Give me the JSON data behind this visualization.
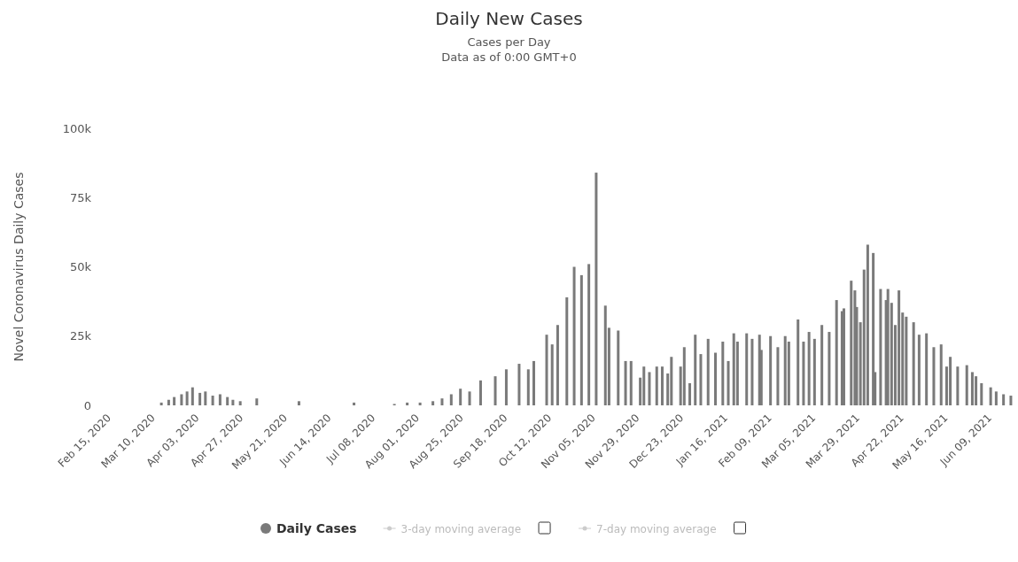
{
  "chart_data": {
    "type": "bar",
    "title": "Daily New Cases",
    "subtitle": "Cases per Day\nData as of 0:00 GMT+0",
    "ylabel": "Novel Coronavirus Daily Cases",
    "x": [
      "2020-03-16",
      "2020-03-20",
      "2020-03-23",
      "2020-03-27",
      "2020-03-30",
      "2020-04-02",
      "2020-04-06",
      "2020-04-09",
      "2020-04-13",
      "2020-04-17",
      "2020-04-21",
      "2020-04-24",
      "2020-04-28",
      "2020-05-07",
      "2020-05-30",
      "2020-06-29",
      "2020-07-21",
      "2020-07-28",
      "2020-08-04",
      "2020-08-11",
      "2020-08-16",
      "2020-08-21",
      "2020-08-26",
      "2020-08-31",
      "2020-09-06",
      "2020-09-14",
      "2020-09-20",
      "2020-09-27",
      "2020-10-02",
      "2020-10-05",
      "2020-10-12",
      "2020-10-15",
      "2020-10-18",
      "2020-10-23",
      "2020-10-27",
      "2020-10-31",
      "2020-11-04",
      "2020-11-08",
      "2020-11-13",
      "2020-11-15",
      "2020-11-20",
      "2020-11-24",
      "2020-11-27",
      "2020-12-02",
      "2020-12-04",
      "2020-12-07",
      "2020-12-11",
      "2020-12-14",
      "2020-12-17",
      "2020-12-19",
      "2020-12-24",
      "2020-12-26",
      "2020-12-29",
      "2021-01-01",
      "2021-01-04",
      "2021-01-08",
      "2021-01-12",
      "2021-01-16",
      "2021-01-19",
      "2021-01-22",
      "2021-01-24",
      "2021-01-29",
      "2021-02-01",
      "2021-02-05",
      "2021-02-06",
      "2021-02-11",
      "2021-02-15",
      "2021-02-19",
      "2021-02-21",
      "2021-02-26",
      "2021-03-01",
      "2021-03-04",
      "2021-03-07",
      "2021-03-11",
      "2021-03-15",
      "2021-03-19",
      "2021-03-22",
      "2021-03-23",
      "2021-03-27",
      "2021-03-29",
      "2021-03-30",
      "2021-04-01",
      "2021-04-03",
      "2021-04-05",
      "2021-04-08",
      "2021-04-09",
      "2021-04-12",
      "2021-04-15",
      "2021-04-16",
      "2021-04-18",
      "2021-04-20",
      "2021-04-22",
      "2021-04-24",
      "2021-04-26",
      "2021-04-30",
      "2021-05-03",
      "2021-05-07",
      "2021-05-11",
      "2021-05-15",
      "2021-05-18",
      "2021-05-20",
      "2021-05-24",
      "2021-05-29",
      "2021-06-01",
      "2021-06-03",
      "2021-06-06",
      "2021-06-11",
      "2021-06-14",
      "2021-06-18",
      "2021-06-22"
    ],
    "series": [
      {
        "name": "Daily Cases",
        "color": "#7a7a7a",
        "values": [
          1000,
          2000,
          3000,
          4000,
          5000,
          6500,
          4500,
          5000,
          3500,
          4000,
          3000,
          2000,
          1500,
          2500,
          1500,
          1000,
          500,
          1000,
          1000,
          1500,
          2500,
          4000,
          6000,
          5000,
          9000,
          10500,
          13000,
          15000,
          13000,
          16000,
          25500,
          22000,
          29000,
          39000,
          50000,
          47000,
          51000,
          84000,
          36000,
          28000,
          27000,
          16000,
          16000,
          10000,
          14000,
          12000,
          14000,
          14000,
          11500,
          17500,
          14000,
          21000,
          8000,
          25500,
          18500,
          24000,
          19000,
          23000,
          16000,
          26000,
          23000,
          26000,
          24000,
          25500,
          20000,
          25000,
          21000,
          25000,
          23000,
          31000,
          23000,
          26500,
          24000,
          29000,
          26500,
          38000,
          34000,
          35000,
          45000,
          41500,
          35500,
          30000,
          49000,
          58000,
          55000,
          12000,
          42000,
          38000,
          42000,
          37000,
          29000,
          41500,
          33500,
          32000,
          30000,
          25500,
          26000,
          21000,
          22000,
          14000,
          17500,
          14000,
          14500,
          12000,
          10500,
          8000,
          6500,
          5000,
          4000,
          3500
        ]
      }
    ],
    "xlim": [
      "2020-02-15",
      "2021-06-23"
    ],
    "xticks": [
      {
        "value": "2020-02-15",
        "label": "Feb 15, 2020"
      },
      {
        "value": "2020-03-10",
        "label": "Mar 10, 2020"
      },
      {
        "value": "2020-04-03",
        "label": "Apr 03, 2020"
      },
      {
        "value": "2020-04-27",
        "label": "Apr 27, 2020"
      },
      {
        "value": "2020-05-21",
        "label": "May 21, 2020"
      },
      {
        "value": "2020-06-14",
        "label": "Jun 14, 2020"
      },
      {
        "value": "2020-07-08",
        "label": "Jul 08, 2020"
      },
      {
        "value": "2020-08-01",
        "label": "Aug 01, 2020"
      },
      {
        "value": "2020-08-25",
        "label": "Aug 25, 2020"
      },
      {
        "value": "2020-09-18",
        "label": "Sep 18, 2020"
      },
      {
        "value": "2020-10-12",
        "label": "Oct 12, 2020"
      },
      {
        "value": "2020-11-05",
        "label": "Nov 05, 2020"
      },
      {
        "value": "2020-11-29",
        "label": "Nov 29, 2020"
      },
      {
        "value": "2020-12-23",
        "label": "Dec 23, 2020"
      },
      {
        "value": "2021-01-16",
        "label": "Jan 16, 2021"
      },
      {
        "value": "2021-02-09",
        "label": "Feb 09, 2021"
      },
      {
        "value": "2021-03-05",
        "label": "Mar 05, 2021"
      },
      {
        "value": "2021-03-29",
        "label": "Mar 29, 2021"
      },
      {
        "value": "2021-04-22",
        "label": "Apr 22, 2021"
      },
      {
        "value": "2021-05-16",
        "label": "May 16, 2021"
      },
      {
        "value": "2021-06-09",
        "label": "Jun 09, 2021"
      }
    ],
    "ylim": [
      0,
      100000
    ],
    "yticks": [
      0,
      {
        "value": 25000,
        "label": "25k"
      },
      {
        "value": 50000,
        "label": "50k"
      },
      {
        "value": 75000,
        "label": "75k"
      },
      {
        "value": 100000,
        "label": "100k"
      }
    ],
    "legend": "bottom",
    "annotations": [
      "3-day moving average",
      "7-day moving average"
    ]
  }
}
